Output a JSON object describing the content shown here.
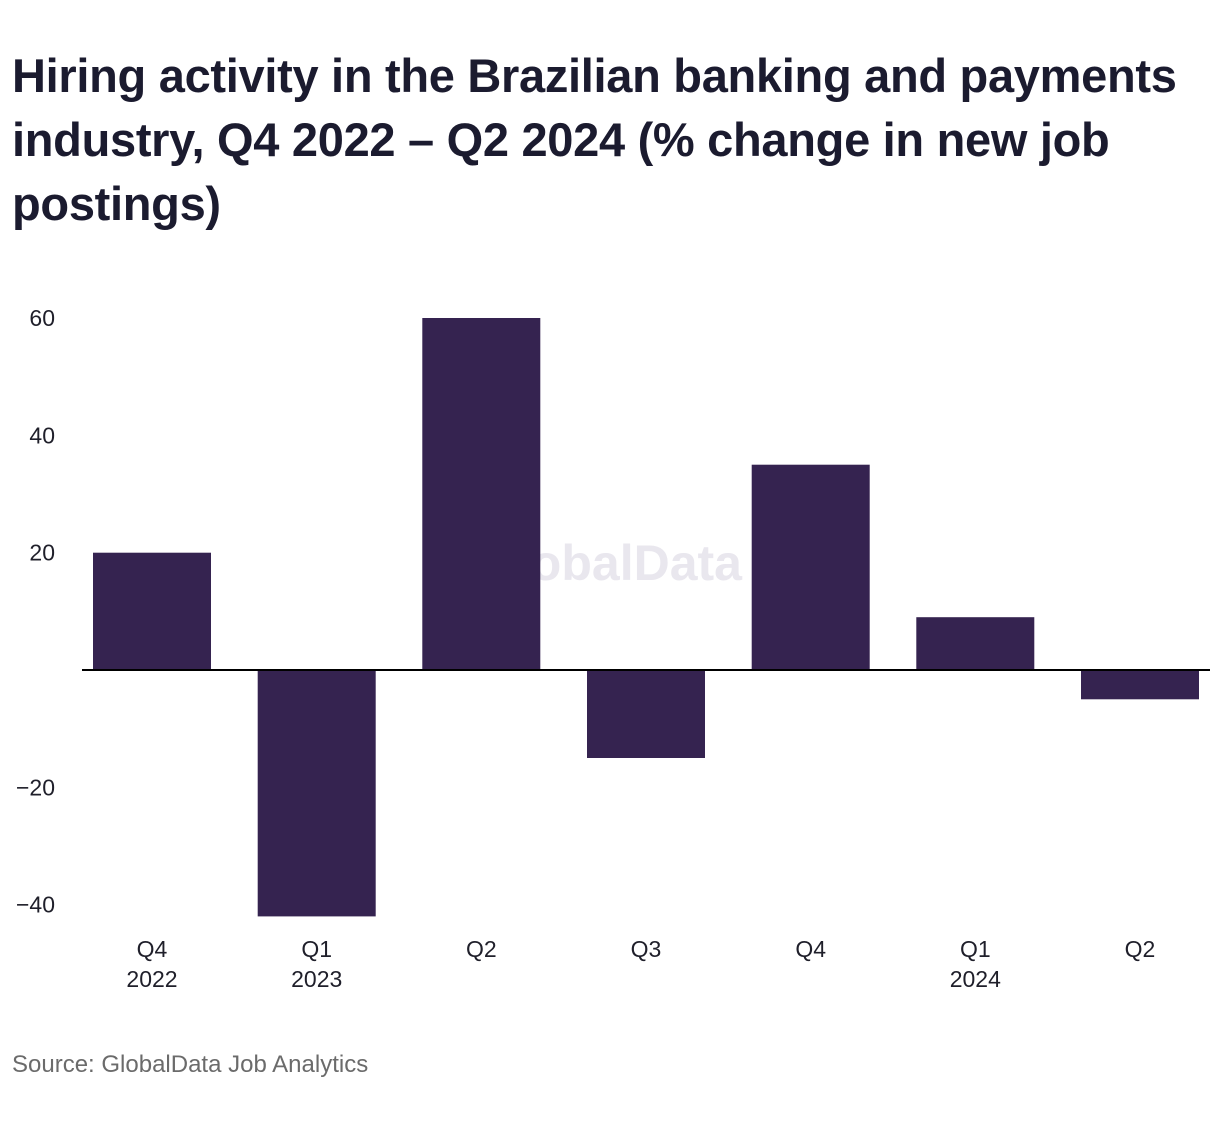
{
  "title": "Hiring activity in the Brazilian banking and payments industry, Q4 2022 – Q2 2024 (% change in new job postings)",
  "source": "Source: GlobalData Job Analytics",
  "watermark": "GlobalData",
  "colors": {
    "bar": "#352350",
    "axis": "#000000",
    "title": "#1b1b2f",
    "source": "#6b6b6b"
  },
  "chart_data": {
    "type": "bar",
    "categories": [
      [
        "Q4",
        "2022"
      ],
      [
        "Q1",
        "2023"
      ],
      [
        "Q2"
      ],
      [
        "Q3"
      ],
      [
        "Q4"
      ],
      [
        "Q1",
        "2024"
      ],
      [
        "Q2"
      ]
    ],
    "values": [
      20,
      -42,
      60,
      -15,
      35,
      9,
      -5
    ],
    "title": "Hiring activity in the Brazilian banking and payments industry, Q4 2022 – Q2 2024 (% change in new job postings)",
    "xlabel": "",
    "ylabel": "",
    "ylim": [
      -44,
      62
    ],
    "yticks": [
      60,
      40,
      20,
      -20,
      -40
    ],
    "ytick_labels": [
      "60",
      "40",
      "20",
      "−20",
      "−40"
    ],
    "grid": false,
    "legend": "none"
  }
}
